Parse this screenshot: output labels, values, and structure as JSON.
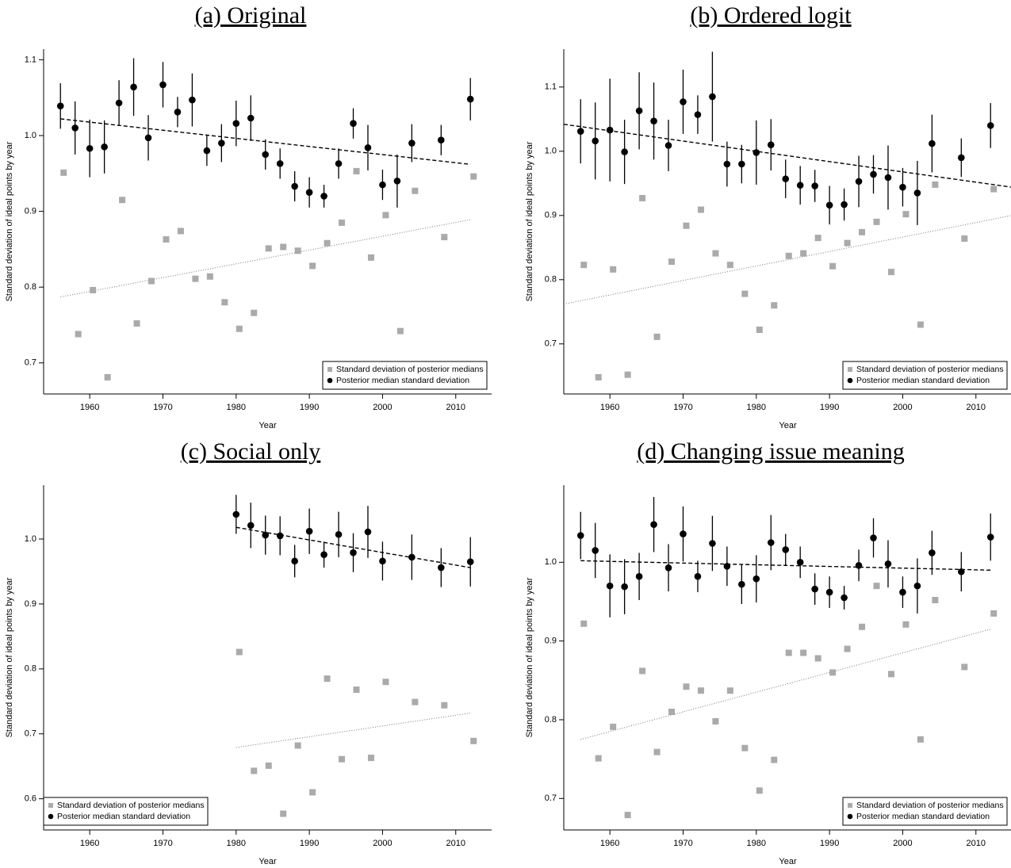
{
  "chart_data": [
    {
      "type": "scatter",
      "title": "(a) Original",
      "x_label": "Year",
      "y_label": "Standard deviation of ideal points by year",
      "x": [
        1956,
        1958,
        1960,
        1962,
        1964,
        1966,
        1968,
        1970,
        1972,
        1974,
        1976,
        1978,
        1980,
        1982,
        1984,
        1986,
        1988,
        1990,
        1992,
        1994,
        1996,
        1998,
        2000,
        2002,
        2004,
        2008,
        2012
      ],
      "series": [
        {
          "name": "Standard deviation of posterior medians",
          "color": "#aaaaaa",
          "marker": "square",
          "values": [
            0.951,
            0.738,
            0.796,
            0.681,
            0.915,
            0.752,
            0.808,
            0.863,
            0.874,
            0.811,
            0.814,
            0.78,
            0.745,
            0.766,
            0.851,
            0.853,
            0.848,
            0.828,
            0.858,
            0.885,
            0.953,
            0.839,
            0.895,
            0.742,
            0.927,
            0.866,
            0.946
          ],
          "trend": {
            "x": [
              1956,
              2012
            ],
            "values": [
              0.787,
              0.889
            ],
            "style": "dotted"
          }
        },
        {
          "name": "Posterior median standard deviation",
          "color": "#000000",
          "marker": "circle",
          "values": [
            1.039,
            1.01,
            0.983,
            0.985,
            1.043,
            1.064,
            0.997,
            1.067,
            1.031,
            1.047,
            0.98,
            0.99,
            1.016,
            1.023,
            0.975,
            0.963,
            0.933,
            0.925,
            0.92,
            0.963,
            1.016,
            0.984,
            0.935,
            0.94,
            0.99,
            0.994,
            1.048
          ],
          "errors": [
            0.03,
            0.035,
            0.038,
            0.035,
            0.03,
            0.038,
            0.03,
            0.03,
            0.02,
            0.035,
            0.02,
            0.025,
            0.03,
            0.03,
            0.02,
            0.02,
            0.02,
            0.02,
            0.015,
            0.02,
            0.02,
            0.03,
            0.02,
            0.035,
            0.025,
            0.02,
            0.028
          ],
          "trend": {
            "x": [
              1956,
              2012
            ],
            "values": [
              1.022,
              0.962
            ],
            "style": "dashed"
          }
        }
      ],
      "xlim": [
        1953.7,
        2014.9
      ],
      "xticks": [
        1960,
        1970,
        1980,
        1990,
        2000,
        2010
      ],
      "ylim": [
        0.659,
        1.114
      ],
      "yticks": [
        0.7,
        0.8,
        0.9,
        {
          "value": 1,
          "label": "1.0"
        },
        1.1
      ],
      "legend": "bottomright"
    },
    {
      "type": "scatter",
      "title": "(b) Ordered logit",
      "x_label": "Year",
      "y_label": "Standard deviation of ideal points by year",
      "x": [
        1956,
        1958,
        1960,
        1962,
        1964,
        1966,
        1968,
        1970,
        1972,
        1974,
        1976,
        1978,
        1980,
        1982,
        1984,
        1986,
        1988,
        1990,
        1992,
        1994,
        1996,
        1998,
        2000,
        2002,
        2004,
        2008,
        2012
      ],
      "series": [
        {
          "name": "Standard deviation of posterior medians",
          "color": "#aaaaaa",
          "marker": "square",
          "values": [
            0.823,
            0.648,
            0.816,
            0.652,
            0.927,
            0.711,
            0.828,
            0.884,
            0.909,
            0.841,
            0.823,
            0.778,
            0.722,
            0.76,
            0.837,
            0.841,
            0.865,
            0.821,
            0.857,
            0.874,
            0.89,
            0.812,
            0.902,
            0.73,
            0.948,
            0.864,
            0.941
          ],
          "trend": {
            "x": [
              1953.7,
              2014.9
            ],
            "values": [
              0.762,
              0.9
            ],
            "style": "dotted"
          }
        },
        {
          "name": "Posterior median standard deviation",
          "color": "#000000",
          "marker": "circle",
          "values": [
            1.031,
            1.016,
            1.033,
            0.999,
            1.063,
            1.047,
            1.009,
            1.077,
            1.057,
            1.085,
            0.98,
            0.98,
            0.998,
            1.01,
            0.957,
            0.947,
            0.946,
            0.916,
            0.917,
            0.953,
            0.964,
            0.959,
            0.944,
            0.935,
            1.012,
            0.99,
            1.04
          ],
          "errors": [
            0.05,
            0.06,
            0.08,
            0.05,
            0.06,
            0.06,
            0.04,
            0.05,
            0.03,
            0.07,
            0.035,
            0.03,
            0.05,
            0.04,
            0.03,
            0.03,
            0.025,
            0.03,
            0.025,
            0.04,
            0.03,
            0.05,
            0.03,
            0.05,
            0.045,
            0.03,
            0.035
          ],
          "trend": {
            "x": [
              1953.7,
              2014.9
            ],
            "values": [
              1.042,
              0.944
            ],
            "style": "dashed"
          }
        }
      ],
      "xlim": [
        1953.7,
        2014.9
      ],
      "xticks": [
        1960,
        1970,
        1980,
        1990,
        2000,
        2010
      ],
      "ylim": [
        0.622,
        1.159
      ],
      "yticks": [
        0.7,
        0.8,
        0.9,
        {
          "value": 1,
          "label": "1.0"
        },
        1.1
      ],
      "legend": "bottomright"
    },
    {
      "type": "scatter",
      "title": "(c) Social only",
      "x_label": "Year",
      "y_label": "Standard deviation of ideal points by year",
      "x": [
        1980,
        1982,
        1984,
        1986,
        1988,
        1990,
        1992,
        1994,
        1996,
        1998,
        2000,
        2004,
        2008,
        2012
      ],
      "series": [
        {
          "name": "Standard deviation of posterior medians",
          "color": "#aaaaaa",
          "marker": "square",
          "values": [
            0.826,
            0.643,
            0.651,
            0.577,
            0.682,
            0.61,
            0.785,
            0.661,
            0.768,
            0.663,
            0.78,
            0.749,
            0.744,
            0.689
          ],
          "trend": {
            "x": [
              1980,
              2012
            ],
            "values": [
              0.679,
              0.732
            ],
            "style": "dotted"
          }
        },
        {
          "name": "Posterior median standard deviation",
          "color": "#000000",
          "marker": "circle",
          "values": [
            1.038,
            1.021,
            1.006,
            1.005,
            0.966,
            1.012,
            0.976,
            1.007,
            0.979,
            1.011,
            0.966,
            0.972,
            0.956,
            0.965
          ],
          "errors": [
            0.03,
            0.035,
            0.03,
            0.03,
            0.025,
            0.035,
            0.02,
            0.035,
            0.03,
            0.04,
            0.03,
            0.035,
            0.03,
            0.038
          ],
          "trend": {
            "x": [
              1980,
              2012
            ],
            "values": [
              1.018,
              0.956
            ],
            "style": "dashed"
          }
        }
      ],
      "xlim": [
        1953.7,
        2014.9
      ],
      "xticks": [
        1960,
        1970,
        1980,
        1990,
        2000,
        2010
      ],
      "ylim": [
        0.552,
        1.083
      ],
      "yticks": [
        0.6,
        0.7,
        0.8,
        0.9,
        {
          "value": 1,
          "label": "1.0"
        }
      ],
      "legend": "bottomleft"
    },
    {
      "type": "scatter",
      "title": "(d) Changing issue meaning",
      "x_label": "Year",
      "y_label": "Standard deviation of ideal points by year",
      "x": [
        1956,
        1958,
        1960,
        1962,
        1964,
        1966,
        1968,
        1970,
        1972,
        1974,
        1976,
        1978,
        1980,
        1982,
        1984,
        1986,
        1988,
        1990,
        1992,
        1994,
        1996,
        1998,
        2000,
        2002,
        2004,
        2008,
        2012
      ],
      "series": [
        {
          "name": "Standard deviation of posterior medians",
          "color": "#aaaaaa",
          "marker": "square",
          "values": [
            0.922,
            0.751,
            0.791,
            0.679,
            0.862,
            0.759,
            0.81,
            0.842,
            0.837,
            0.798,
            0.837,
            0.764,
            0.71,
            0.749,
            0.885,
            0.885,
            0.878,
            0.86,
            0.89,
            0.918,
            0.97,
            0.858,
            0.921,
            0.775,
            0.952,
            0.867,
            0.935
          ],
          "trend": {
            "x": [
              1956,
              2012
            ],
            "values": [
              0.775,
              0.915
            ],
            "style": "dotted"
          }
        },
        {
          "name": "Posterior median standard deviation",
          "color": "#000000",
          "marker": "circle",
          "values": [
            1.034,
            1.015,
            0.97,
            0.969,
            0.982,
            1.048,
            0.993,
            1.036,
            0.982,
            1.024,
            0.995,
            0.972,
            0.979,
            1.025,
            1.016,
            1.0,
            0.966,
            0.962,
            0.955,
            0.996,
            1.031,
            0.998,
            0.962,
            0.97,
            1.012,
            0.988,
            1.032
          ],
          "errors": [
            0.03,
            0.035,
            0.04,
            0.035,
            0.03,
            0.035,
            0.03,
            0.035,
            0.02,
            0.035,
            0.025,
            0.025,
            0.03,
            0.035,
            0.02,
            0.02,
            0.02,
            0.02,
            0.015,
            0.02,
            0.025,
            0.03,
            0.02,
            0.035,
            0.028,
            0.025,
            0.03
          ],
          "trend": {
            "x": [
              1956,
              2012
            ],
            "values": [
              1.002,
              0.99
            ],
            "style": "dashed"
          }
        }
      ],
      "xlim": [
        1953.7,
        2014.9
      ],
      "xticks": [
        1960,
        1970,
        1980,
        1990,
        2000,
        2010
      ],
      "ylim": [
        0.66,
        1.098
      ],
      "yticks": [
        0.7,
        0.8,
        0.9,
        {
          "value": 1,
          "label": "1.0"
        }
      ],
      "legend": "bottomright"
    }
  ]
}
